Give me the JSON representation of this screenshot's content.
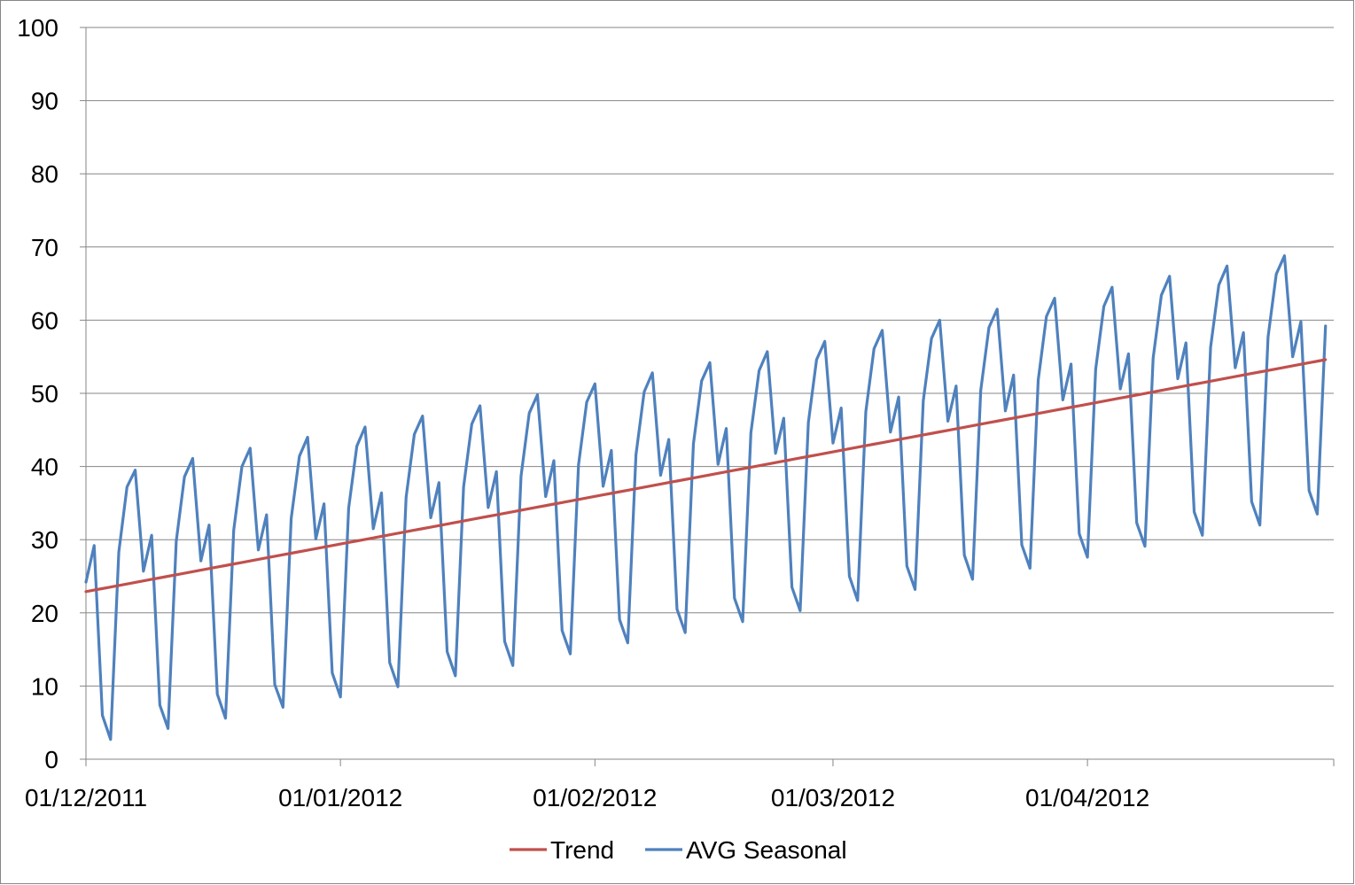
{
  "chart_data": {
    "type": "line",
    "title": "",
    "xlabel": "",
    "ylabel": "",
    "ylim": [
      0,
      100
    ],
    "yticks": [
      0,
      10,
      20,
      30,
      40,
      50,
      60,
      70,
      80,
      90,
      100
    ],
    "xlim": [
      "01/12/2011",
      "01/05/2012"
    ],
    "xtick_labels": [
      "01/12/2011",
      "01/01/2012",
      "01/02/2012",
      "01/03/2012",
      "01/04/2012"
    ],
    "grid": "horizontal",
    "legend": {
      "position": "bottom",
      "entries": [
        "Trend",
        "AVG Seasonal"
      ]
    },
    "colors": {
      "trend": "#c0504d",
      "seasonal": "#4f81bd",
      "gridline": "#868686",
      "axis": "#868686"
    },
    "series": [
      {
        "name": "Trend",
        "x_start": "01/12/2011",
        "x_step_days": 1,
        "y_start": 22.9,
        "y_end": 54.6,
        "points": 152
      },
      {
        "name": "AVG Seasonal",
        "x_start": "01/12/2011",
        "x_step_days": 1,
        "values": [
          24.2,
          29.2,
          6.0,
          2.7,
          28.3,
          37.2,
          39.5,
          25.7,
          30.6,
          7.4,
          4.2,
          29.8,
          38.6,
          41.1,
          27.1,
          32.0,
          8.9,
          5.6,
          31.3,
          40.0,
          42.5,
          28.6,
          33.4,
          10.2,
          7.1,
          32.9,
          41.4,
          44.0,
          30.1,
          34.9,
          11.8,
          8.5,
          34.3,
          42.8,
          45.4,
          31.5,
          36.4,
          13.2,
          9.9,
          35.8,
          44.4,
          46.9,
          33.0,
          37.8,
          14.7,
          11.4,
          37.2,
          45.8,
          48.3,
          34.4,
          39.3,
          16.1,
          12.8,
          38.7,
          47.3,
          49.8,
          35.9,
          40.8,
          17.6,
          14.4,
          40.2,
          48.8,
          51.3,
          37.3,
          42.2,
          19.1,
          15.9,
          41.6,
          50.2,
          52.8,
          38.8,
          43.7,
          20.5,
          17.3,
          43.1,
          51.7,
          54.2,
          40.3,
          45.2,
          22.0,
          18.8,
          44.6,
          53.1,
          55.7,
          41.8,
          46.6,
          23.5,
          20.3,
          46.0,
          54.6,
          57.1,
          43.2,
          48.0,
          25.0,
          21.7,
          47.5,
          56.1,
          58.6,
          44.7,
          49.5,
          26.4,
          23.2,
          49.0,
          57.5,
          60.0,
          46.2,
          51.0,
          27.9,
          24.6,
          50.4,
          59.0,
          61.5,
          47.6,
          52.5,
          29.3,
          26.1,
          51.8,
          60.5,
          63.0,
          49.1,
          54.0,
          30.8,
          27.6,
          53.3,
          61.9,
          64.5,
          50.6,
          55.4,
          32.3,
          29.1,
          54.8,
          63.4,
          66.0,
          52.0,
          56.9,
          33.8,
          30.6,
          56.3,
          64.8,
          67.4,
          53.5,
          58.3,
          35.2,
          32.0,
          57.7,
          66.3,
          68.8,
          55.0,
          59.8,
          36.7,
          33.5,
          59.2
        ]
      }
    ]
  }
}
